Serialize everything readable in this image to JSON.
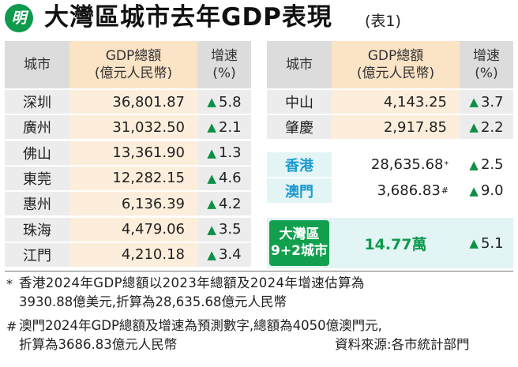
{
  "header": {
    "logo_char": "明",
    "title": "大灣區城市去年GDP表現",
    "subtitle": "(表1)"
  },
  "table_left": {
    "col_city": "城市",
    "col_gdp_line1": "GDP總額",
    "col_gdp_line2": "(億元人民幣)",
    "col_growth_line1": "增速",
    "col_growth_line2": "(%)",
    "rows": [
      {
        "city": "深圳",
        "gdp": "36,801.87",
        "growth": "5.8"
      },
      {
        "city": "廣州",
        "gdp": "31,032.50",
        "growth": "2.1"
      },
      {
        "city": "佛山",
        "gdp": "13,361.90",
        "growth": "1.3"
      },
      {
        "city": "東莞",
        "gdp": "12,282.15",
        "growth": "4.6"
      },
      {
        "city": "惠州",
        "gdp": "6,136.39",
        "growth": "4.2"
      },
      {
        "city": "珠海",
        "gdp": "4,479.06",
        "growth": "3.5"
      },
      {
        "city": "江門",
        "gdp": "4,210.18",
        "growth": "3.4"
      }
    ]
  },
  "table_right": {
    "col_city": "城市",
    "col_gdp_line1": "GDP總額",
    "col_gdp_line2": "(億元人民幣)",
    "col_growth_line1": "增速",
    "col_growth_line2": "(%)",
    "rows": [
      {
        "city": "中山",
        "gdp": "4,143.25",
        "growth": "3.7"
      },
      {
        "city": "肇慶",
        "gdp": "2,917.85",
        "growth": "2.2"
      }
    ],
    "special_rows": [
      {
        "city": "香港",
        "gdp": "28,635.68",
        "mark": "*",
        "growth": "2.5"
      },
      {
        "city": "澳門",
        "gdp": "3,686.83",
        "mark": "#",
        "growth": "9.0"
      }
    ],
    "gba": {
      "label_line1": "大灣區",
      "label_line2": "9+2城市",
      "total": "14.77萬",
      "growth": "5.1"
    }
  },
  "triangle": "▲",
  "footnotes": {
    "note1_mark": "*",
    "note1_line1": "香港2024年GDP總額以2023年總額及2024年增速估算為",
    "note1_line2": "3930.88億美元,折算為28,635.68億元人民幣",
    "note2_mark": "#",
    "note2_line1": "澳門2024年GDP總額及增速為預測數字,總額為4050億澳門元,",
    "note2_line2": "折算為3686.83億元人民幣",
    "source": "資料來源:各市統計部門"
  },
  "colors": {
    "accent_green": "#0f9a4e",
    "hk_blue": "#1a9ad0",
    "header_peach": "#fbe3c5",
    "header_gray": "#dcdcdc",
    "row_gray": "#ececec",
    "row_peach": "#fdeedc"
  }
}
